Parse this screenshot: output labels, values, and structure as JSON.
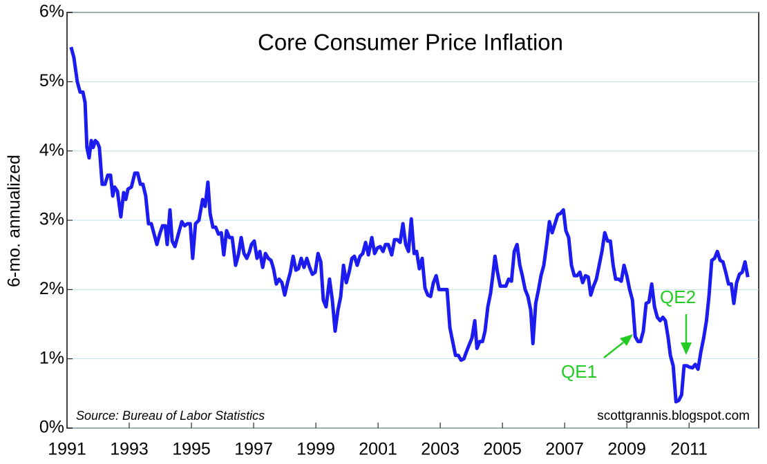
{
  "chart_data": {
    "type": "line",
    "title": "Core Consumer Price Inflation",
    "y_label": "6-mo. annualized",
    "source": "Source: Bureau of Labor Statistics",
    "credit": "scottgrannis.blogspot.com",
    "annotations": [
      {
        "text": "QE1"
      },
      {
        "text": "QE2"
      }
    ],
    "color": "#1c1cf0",
    "grid": true,
    "xlim": [
      1991,
      2013.24
    ],
    "xticks": [
      1991,
      1993,
      1995,
      1997,
      1999,
      2001,
      2003,
      2005,
      2007,
      2009,
      2011
    ],
    "ylim": [
      0,
      6
    ],
    "yticks": [
      {
        "value": 0,
        "label": "0%"
      },
      {
        "value": 1,
        "label": "1%"
      },
      {
        "value": 2,
        "label": "2%"
      },
      {
        "value": 3,
        "label": "3%"
      },
      {
        "value": 4,
        "label": "4%"
      },
      {
        "value": 5,
        "label": "5%"
      },
      {
        "value": 6,
        "label": "6%"
      }
    ],
    "x": [
      1991.13,
      1991.22,
      1991.33,
      1991.42,
      1991.51,
      1991.58,
      1991.64,
      1991.71,
      1991.78,
      1991.84,
      1991.91,
      1991.98,
      1992.04,
      1992.13,
      1992.22,
      1992.31,
      1992.4,
      1992.47,
      1992.53,
      1992.62,
      1992.73,
      1992.82,
      1992.89,
      1992.96,
      1993.07,
      1993.18,
      1993.27,
      1993.36,
      1993.44,
      1993.53,
      1993.62,
      1993.71,
      1993.8,
      1993.89,
      1993.98,
      1994.07,
      1994.16,
      1994.22,
      1994.31,
      1994.38,
      1994.47,
      1994.58,
      1994.69,
      1994.78,
      1994.87,
      1994.96,
      1995.04,
      1995.13,
      1995.24,
      1995.36,
      1995.44,
      1995.53,
      1995.6,
      1995.69,
      1995.78,
      1995.87,
      1995.96,
      1996.04,
      1996.13,
      1996.22,
      1996.31,
      1996.42,
      1996.51,
      1996.6,
      1996.69,
      1996.78,
      1996.87,
      1996.93,
      1997.02,
      1997.11,
      1997.2,
      1997.29,
      1997.38,
      1997.47,
      1997.56,
      1997.64,
      1997.73,
      1997.82,
      1997.91,
      1998.0,
      1998.09,
      1998.18,
      1998.27,
      1998.36,
      1998.44,
      1998.53,
      1998.62,
      1998.71,
      1998.8,
      1998.89,
      1998.98,
      1999.07,
      1999.16,
      1999.24,
      1999.33,
      1999.44,
      1999.53,
      1999.62,
      1999.71,
      1999.8,
      1999.89,
      1999.98,
      2000.07,
      2000.16,
      2000.24,
      2000.33,
      2000.42,
      2000.51,
      2000.6,
      2000.69,
      2000.8,
      2000.89,
      2000.98,
      2001.07,
      2001.16,
      2001.24,
      2001.33,
      2001.44,
      2001.53,
      2001.62,
      2001.71,
      2001.8,
      2001.89,
      2001.98,
      2002.07,
      2002.16,
      2002.24,
      2002.33,
      2002.42,
      2002.51,
      2002.6,
      2002.69,
      2002.78,
      2002.87,
      2002.96,
      2003.04,
      2003.13,
      2003.22,
      2003.31,
      2003.4,
      2003.49,
      2003.58,
      2003.67,
      2003.76,
      2003.84,
      2003.93,
      2004.02,
      2004.11,
      2004.18,
      2004.27,
      2004.36,
      2004.44,
      2004.53,
      2004.62,
      2004.69,
      2004.76,
      2004.84,
      2004.93,
      2005.02,
      2005.11,
      2005.2,
      2005.29,
      2005.38,
      2005.47,
      2005.56,
      2005.64,
      2005.73,
      2005.82,
      2005.91,
      2005.98,
      2006.07,
      2006.16,
      2006.24,
      2006.33,
      2006.42,
      2006.51,
      2006.6,
      2006.69,
      2006.78,
      2006.87,
      2006.96,
      2007.04,
      2007.13,
      2007.22,
      2007.31,
      2007.4,
      2007.49,
      2007.58,
      2007.67,
      2007.76,
      2007.84,
      2007.93,
      2008.02,
      2008.11,
      2008.2,
      2008.29,
      2008.38,
      2008.47,
      2008.56,
      2008.64,
      2008.73,
      2008.82,
      2008.91,
      2009.0,
      2009.09,
      2009.18,
      2009.27,
      2009.36,
      2009.44,
      2009.53,
      2009.62,
      2009.71,
      2009.8,
      2009.89,
      2009.98,
      2010.07,
      2010.16,
      2010.24,
      2010.33,
      2010.4,
      2010.49,
      2010.58,
      2010.67,
      2010.76,
      2010.84,
      2010.93,
      2011.02,
      2011.11,
      2011.2,
      2011.29,
      2011.38,
      2011.47,
      2011.56,
      2011.64,
      2011.73,
      2011.82,
      2011.91,
      2012.0,
      2012.09,
      2012.18,
      2012.27,
      2012.36,
      2012.44,
      2012.53,
      2012.62,
      2012.71,
      2012.8,
      2012.89
    ],
    "values": [
      5.5,
      5.35,
      5.0,
      4.85,
      4.85,
      4.7,
      4.05,
      3.9,
      4.15,
      4.05,
      4.15,
      4.12,
      4.05,
      3.52,
      3.52,
      3.65,
      3.65,
      3.35,
      3.48,
      3.42,
      3.05,
      3.4,
      3.3,
      3.45,
      3.48,
      3.68,
      3.68,
      3.52,
      3.52,
      3.35,
      2.95,
      2.95,
      2.8,
      2.65,
      2.8,
      2.92,
      2.92,
      2.65,
      3.15,
      2.7,
      2.62,
      2.8,
      2.98,
      2.92,
      2.95,
      2.95,
      2.45,
      2.95,
      3.0,
      3.3,
      3.2,
      3.55,
      3.1,
      2.9,
      2.9,
      2.8,
      2.82,
      2.5,
      2.85,
      2.75,
      2.75,
      2.35,
      2.5,
      2.75,
      2.52,
      2.45,
      2.55,
      2.65,
      2.7,
      2.45,
      2.55,
      2.32,
      2.52,
      2.45,
      2.42,
      2.3,
      2.08,
      2.15,
      2.1,
      1.92,
      2.1,
      2.25,
      2.48,
      2.28,
      2.3,
      2.45,
      2.32,
      2.45,
      2.32,
      2.22,
      2.25,
      2.52,
      2.4,
      1.85,
      1.75,
      2.15,
      1.85,
      1.4,
      1.7,
      1.9,
      2.35,
      2.1,
      2.25,
      2.45,
      2.48,
      2.35,
      2.48,
      2.52,
      2.68,
      2.5,
      2.75,
      2.52,
      2.6,
      2.62,
      2.55,
      2.65,
      2.65,
      2.5,
      2.72,
      2.72,
      2.68,
      2.95,
      2.65,
      2.55,
      3.02,
      2.52,
      2.55,
      2.3,
      2.45,
      2.02,
      1.92,
      1.9,
      2.1,
      2.2,
      2.0,
      2.0,
      2.0,
      2.0,
      1.45,
      1.25,
      1.05,
      1.05,
      0.98,
      1.0,
      1.1,
      1.2,
      1.3,
      1.55,
      1.15,
      1.25,
      1.25,
      1.4,
      1.75,
      1.95,
      2.2,
      2.48,
      2.25,
      2.05,
      2.05,
      2.05,
      2.15,
      2.12,
      2.55,
      2.65,
      2.35,
      2.2,
      2.0,
      1.9,
      1.7,
      1.22,
      1.8,
      2.0,
      2.2,
      2.35,
      2.65,
      2.98,
      2.82,
      2.95,
      3.08,
      3.1,
      3.15,
      2.85,
      2.75,
      2.35,
      2.2,
      2.2,
      2.25,
      2.1,
      2.2,
      2.18,
      1.92,
      2.05,
      2.15,
      2.35,
      2.55,
      2.82,
      2.7,
      2.7,
      2.35,
      2.15,
      2.15,
      2.12,
      2.35,
      2.2,
      2.0,
      1.85,
      1.32,
      1.25,
      1.25,
      1.4,
      1.8,
      1.82,
      2.08,
      1.75,
      1.6,
      1.55,
      1.6,
      1.55,
      1.3,
      1.05,
      0.9,
      0.38,
      0.4,
      0.48,
      0.9,
      0.9,
      0.88,
      0.87,
      0.92,
      0.85,
      1.1,
      1.3,
      1.55,
      1.9,
      2.42,
      2.45,
      2.55,
      2.42,
      2.4,
      2.25,
      2.08,
      2.08,
      1.8,
      2.1,
      2.22,
      2.25,
      2.4,
      2.18
    ]
  }
}
